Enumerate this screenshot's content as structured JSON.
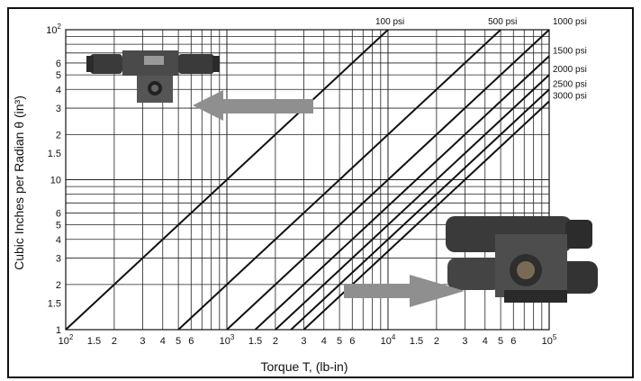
{
  "chart_data": {
    "type": "line",
    "title": "",
    "xlabel": "Torque T,  (lb-in)",
    "ylabel": "Cubic Inches per Radian θ (in³)",
    "xscale": "log",
    "yscale": "log",
    "xlim": [
      100,
      100000
    ],
    "ylim": [
      1,
      100
    ],
    "grid": true,
    "x_tick_labels": [
      {
        "v": 100,
        "m": "10",
        "e": "2"
      },
      {
        "v": 150,
        "m": "1.5",
        "e": ""
      },
      {
        "v": 200,
        "m": "2",
        "e": ""
      },
      {
        "v": 300,
        "m": "3",
        "e": ""
      },
      {
        "v": 400,
        "m": "4",
        "e": ""
      },
      {
        "v": 500,
        "m": "5",
        "e": ""
      },
      {
        "v": 600,
        "m": "6",
        "e": ""
      },
      {
        "v": 1000,
        "m": "10",
        "e": "3"
      },
      {
        "v": 1500,
        "m": "1.5",
        "e": ""
      },
      {
        "v": 2000,
        "m": "2",
        "e": ""
      },
      {
        "v": 3000,
        "m": "3",
        "e": ""
      },
      {
        "v": 4000,
        "m": "4",
        "e": ""
      },
      {
        "v": 5000,
        "m": "5",
        "e": ""
      },
      {
        "v": 6000,
        "m": "6",
        "e": ""
      },
      {
        "v": 10000,
        "m": "10",
        "e": "4"
      },
      {
        "v": 15000,
        "m": "1.5",
        "e": ""
      },
      {
        "v": 20000,
        "m": "2",
        "e": ""
      },
      {
        "v": 30000,
        "m": "3",
        "e": ""
      },
      {
        "v": 40000,
        "m": "4",
        "e": ""
      },
      {
        "v": 50000,
        "m": "5",
        "e": ""
      },
      {
        "v": 60000,
        "m": "6",
        "e": ""
      },
      {
        "v": 100000,
        "m": "10",
        "e": "5"
      }
    ],
    "y_tick_labels": [
      {
        "v": 1,
        "m": "1",
        "e": ""
      },
      {
        "v": 1.5,
        "m": "1.5",
        "e": ""
      },
      {
        "v": 2,
        "m": "2",
        "e": ""
      },
      {
        "v": 3,
        "m": "3",
        "e": ""
      },
      {
        "v": 4,
        "m": "4",
        "e": ""
      },
      {
        "v": 5,
        "m": "5",
        "e": ""
      },
      {
        "v": 6,
        "m": "6",
        "e": ""
      },
      {
        "v": 10,
        "m": "10",
        "e": ""
      },
      {
        "v": 15,
        "m": "1.5",
        "e": ""
      },
      {
        "v": 20,
        "m": "2",
        "e": ""
      },
      {
        "v": 30,
        "m": "3",
        "e": ""
      },
      {
        "v": 40,
        "m": "4",
        "e": ""
      },
      {
        "v": 50,
        "m": "5",
        "e": ""
      },
      {
        "v": 60,
        "m": "6",
        "e": ""
      },
      {
        "v": 100,
        "m": "10",
        "e": "2"
      }
    ],
    "series": [
      {
        "name": "100 psi",
        "points": [
          [
            100,
            1
          ],
          [
            10000,
            100
          ]
        ]
      },
      {
        "name": "500 psi",
        "points": [
          [
            500,
            1
          ],
          [
            50000,
            100
          ]
        ]
      },
      {
        "name": "1000 psi",
        "points": [
          [
            1000,
            1
          ],
          [
            100000,
            100
          ]
        ]
      },
      {
        "name": "1500 psi",
        "points": [
          [
            1500,
            1
          ],
          [
            100000,
            66.7
          ]
        ]
      },
      {
        "name": "2000 psi",
        "points": [
          [
            2000,
            1
          ],
          [
            100000,
            50
          ]
        ]
      },
      {
        "name": "2500 psi",
        "points": [
          [
            2500,
            1
          ],
          [
            100000,
            40
          ]
        ]
      },
      {
        "name": "3000 psi",
        "points": [
          [
            3000,
            1
          ],
          [
            100000,
            33.3
          ]
        ]
      }
    ],
    "images": [
      {
        "name": "small-rotary-actuator-photo",
        "color": "#4a4a4a"
      },
      {
        "name": "large-rotary-actuator-photo",
        "color": "#3f3f3f"
      }
    ],
    "arrows": [
      {
        "name": "arrow-left",
        "direction": "left",
        "color": "#8f8f8f"
      },
      {
        "name": "arrow-right",
        "direction": "right",
        "color": "#8f8f8f"
      }
    ]
  }
}
